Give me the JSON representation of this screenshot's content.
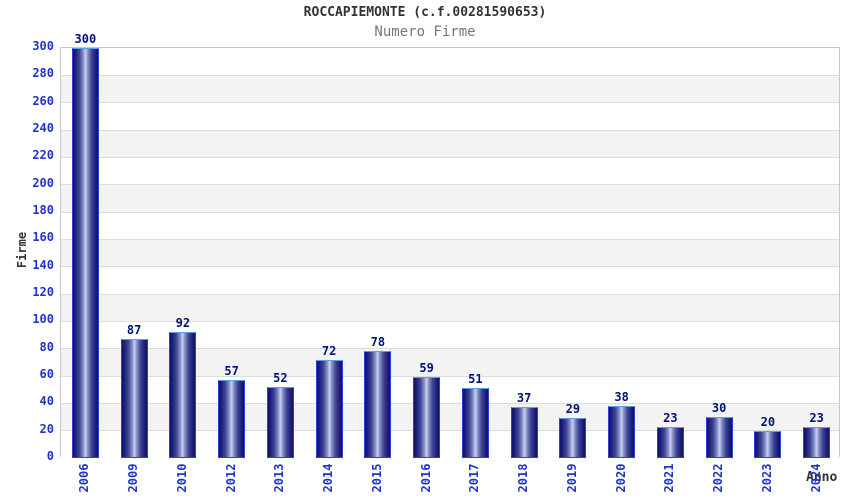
{
  "chart_data": {
    "type": "bar",
    "title": "ROCCAPIEMONTE (c.f.00281590653)",
    "subtitle": "Numero Firme",
    "xlabel": "Anno",
    "ylabel": "Firme",
    "categories": [
      "2006",
      "2009",
      "2010",
      "2012",
      "2013",
      "2014",
      "2015",
      "2016",
      "2017",
      "2018",
      "2019",
      "2020",
      "2021",
      "2022",
      "2023",
      "2024"
    ],
    "values": [
      300,
      87,
      92,
      57,
      52,
      72,
      78,
      59,
      51,
      37,
      29,
      38,
      23,
      30,
      20,
      23
    ],
    "ylim": [
      0,
      300
    ],
    "ytick_step": 20,
    "yticks": [
      0,
      20,
      40,
      60,
      80,
      100,
      120,
      140,
      160,
      180,
      200,
      220,
      240,
      260,
      280,
      300
    ],
    "grid": "horizontal",
    "legend": "none",
    "value_labels_shown": true
  },
  "colors": {
    "tick_label": "#2233cc",
    "value_label": "#001277",
    "title": "#333333",
    "subtitle": "#767676",
    "grid_line": "#dcdcdc",
    "plot_border": "#c9c9c9",
    "band_light": "#ffffff",
    "band_dark": "#f3f3f3",
    "bar_border": "#2d3fd6",
    "bar_border_top": "#5ca0e8",
    "bar_dark": "#13136a",
    "bar_light": "#cdd2ef"
  }
}
